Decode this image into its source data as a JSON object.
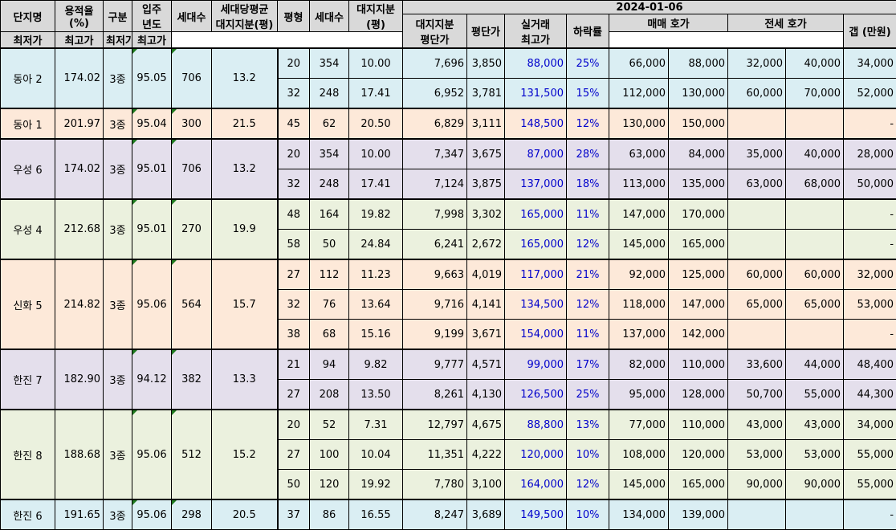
{
  "headers": {
    "complex": "단지명",
    "far": "용적율\n(%)",
    "zone": "구분",
    "year": "입주\n년도",
    "units": "세대수",
    "avg_land": "세대당평균\n대지지분(평)",
    "size": "평형",
    "size_units": "세대수",
    "land": "대지지분\n(평)",
    "date": "2024-01-06",
    "land_price": "대지지분\n평단가",
    "price_per": "평단가",
    "max_trade": "실거래\n최고가",
    "drop": "하락률",
    "sale_group": "매매 호가",
    "jeonse_group": "전세 호가",
    "min": "최저가",
    "max": "최고가",
    "gap": "갭 (만원)"
  },
  "groups": [
    {
      "name": "동아 2",
      "far": "174.02",
      "zone": "3종",
      "year": "95.05",
      "units": "706",
      "avg_land": "13.2",
      "color": "#daeef3",
      "rows": [
        {
          "size": "20",
          "units": "354",
          "land": "10.00",
          "land_price": "7,696",
          "price_per": "3,850",
          "max_trade": "88,000",
          "drop": "25%",
          "sale_min": "66,000",
          "sale_max": "88,000",
          "j_min": "32,000",
          "j_max": "40,000",
          "gap": "34,000"
        },
        {
          "size": "32",
          "units": "248",
          "land": "17.41",
          "land_price": "6,952",
          "price_per": "3,781",
          "max_trade": "131,500",
          "drop": "15%",
          "sale_min": "112,000",
          "sale_max": "130,000",
          "j_min": "60,000",
          "j_max": "70,000",
          "gap": "52,000"
        }
      ]
    },
    {
      "name": "동아 1",
      "far": "201.97",
      "zone": "3종",
      "year": "95.04",
      "units": "300",
      "avg_land": "21.5",
      "color": "#fde9d9",
      "rows": [
        {
          "size": "45",
          "units": "62",
          "land": "20.50",
          "land_price": "6,829",
          "price_per": "3,111",
          "max_trade": "148,500",
          "drop": "12%",
          "sale_min": "130,000",
          "sale_max": "150,000",
          "j_min": "",
          "j_max": "",
          "gap": "-"
        }
      ]
    },
    {
      "name": "우성 6",
      "far": "174.02",
      "zone": "3종",
      "year": "95.01",
      "units": "706",
      "avg_land": "13.2",
      "color": "#e4dfec",
      "rows": [
        {
          "size": "20",
          "units": "354",
          "land": "10.00",
          "land_price": "7,347",
          "price_per": "3,675",
          "max_trade": "87,000",
          "drop": "28%",
          "sale_min": "63,000",
          "sale_max": "84,000",
          "j_min": "35,000",
          "j_max": "40,000",
          "gap": "28,000"
        },
        {
          "size": "32",
          "units": "248",
          "land": "17.41",
          "land_price": "7,124",
          "price_per": "3,875",
          "max_trade": "137,000",
          "drop": "18%",
          "sale_min": "113,000",
          "sale_max": "135,000",
          "j_min": "63,000",
          "j_max": "68,000",
          "gap": "50,000"
        }
      ]
    },
    {
      "name": "우성 4",
      "far": "212.68",
      "zone": "3종",
      "year": "95.01",
      "units": "270",
      "avg_land": "19.9",
      "color": "#ebf1de",
      "rows": [
        {
          "size": "48",
          "units": "164",
          "land": "19.82",
          "land_price": "7,998",
          "price_per": "3,302",
          "max_trade": "165,000",
          "drop": "11%",
          "sale_min": "147,000",
          "sale_max": "170,000",
          "j_min": "",
          "j_max": "",
          "gap": "-"
        },
        {
          "size": "58",
          "units": "50",
          "land": "24.84",
          "land_price": "6,241",
          "price_per": "2,672",
          "max_trade": "165,000",
          "drop": "12%",
          "sale_min": "145,000",
          "sale_max": "165,000",
          "j_min": "",
          "j_max": "",
          "gap": "-"
        }
      ]
    },
    {
      "name": "신화 5",
      "far": "214.82",
      "zone": "3종",
      "year": "95.06",
      "units": "564",
      "avg_land": "15.7",
      "color": "#fde9d9",
      "rows": [
        {
          "size": "27",
          "units": "112",
          "land": "11.23",
          "land_price": "9,663",
          "price_per": "4,019",
          "max_trade": "117,000",
          "drop": "21%",
          "sale_min": "92,000",
          "sale_max": "125,000",
          "j_min": "60,000",
          "j_max": "60,000",
          "gap": "32,000"
        },
        {
          "size": "32",
          "units": "76",
          "land": "13.64",
          "land_price": "9,716",
          "price_per": "4,141",
          "max_trade": "134,500",
          "drop": "12%",
          "sale_min": "118,000",
          "sale_max": "147,000",
          "j_min": "65,000",
          "j_max": "65,000",
          "gap": "53,000"
        },
        {
          "size": "38",
          "units": "68",
          "land": "15.16",
          "land_price": "9,199",
          "price_per": "3,671",
          "max_trade": "154,000",
          "drop": "11%",
          "sale_min": "137,000",
          "sale_max": "142,000",
          "j_min": "",
          "j_max": "",
          "gap": "-"
        }
      ]
    },
    {
      "name": "한진 7",
      "far": "182.90",
      "zone": "3종",
      "year": "94.12",
      "units": "382",
      "avg_land": "13.3",
      "color": "#e4dfec",
      "rows": [
        {
          "size": "21",
          "units": "94",
          "land": "9.82",
          "land_price": "9,777",
          "price_per": "4,571",
          "max_trade": "99,000",
          "drop": "17%",
          "sale_min": "82,000",
          "sale_max": "110,000",
          "j_min": "33,600",
          "j_max": "44,000",
          "gap": "48,400"
        },
        {
          "size": "27",
          "units": "208",
          "land": "13.50",
          "land_price": "8,261",
          "price_per": "4,130",
          "max_trade": "126,500",
          "drop": "25%",
          "sale_min": "95,000",
          "sale_max": "128,000",
          "j_min": "50,700",
          "j_max": "55,000",
          "gap": "44,300"
        }
      ]
    },
    {
      "name": "한진 8",
      "far": "188.68",
      "zone": "3종",
      "year": "95.06",
      "units": "512",
      "avg_land": "15.2",
      "color": "#ebf1de",
      "rows": [
        {
          "size": "20",
          "units": "52",
          "land": "7.31",
          "land_price": "12,797",
          "price_per": "4,675",
          "max_trade": "88,800",
          "drop": "13%",
          "sale_min": "77,000",
          "sale_max": "110,000",
          "j_min": "43,000",
          "j_max": "43,000",
          "gap": "34,000"
        },
        {
          "size": "27",
          "units": "100",
          "land": "10.04",
          "land_price": "11,351",
          "price_per": "4,222",
          "max_trade": "120,000",
          "drop": "10%",
          "sale_min": "108,000",
          "sale_max": "120,000",
          "j_min": "53,000",
          "j_max": "53,000",
          "gap": "55,000"
        },
        {
          "size": "50",
          "units": "120",
          "land": "19.92",
          "land_price": "7,780",
          "price_per": "3,100",
          "max_trade": "164,000",
          "drop": "12%",
          "sale_min": "145,000",
          "sale_max": "165,000",
          "j_min": "90,000",
          "j_max": "90,000",
          "gap": "55,000"
        }
      ]
    },
    {
      "name": "한진 6",
      "far": "191.65",
      "zone": "3종",
      "year": "95.06",
      "units": "298",
      "avg_land": "20.5",
      "color": "#daeef3",
      "rows": [
        {
          "size": "37",
          "units": "86",
          "land": "16.55",
          "land_price": "8,247",
          "price_per": "3,689",
          "max_trade": "149,500",
          "drop": "10%",
          "sale_min": "134,000",
          "sale_max": "139,000",
          "j_min": "",
          "j_max": "",
          "gap": "-"
        }
      ]
    }
  ]
}
